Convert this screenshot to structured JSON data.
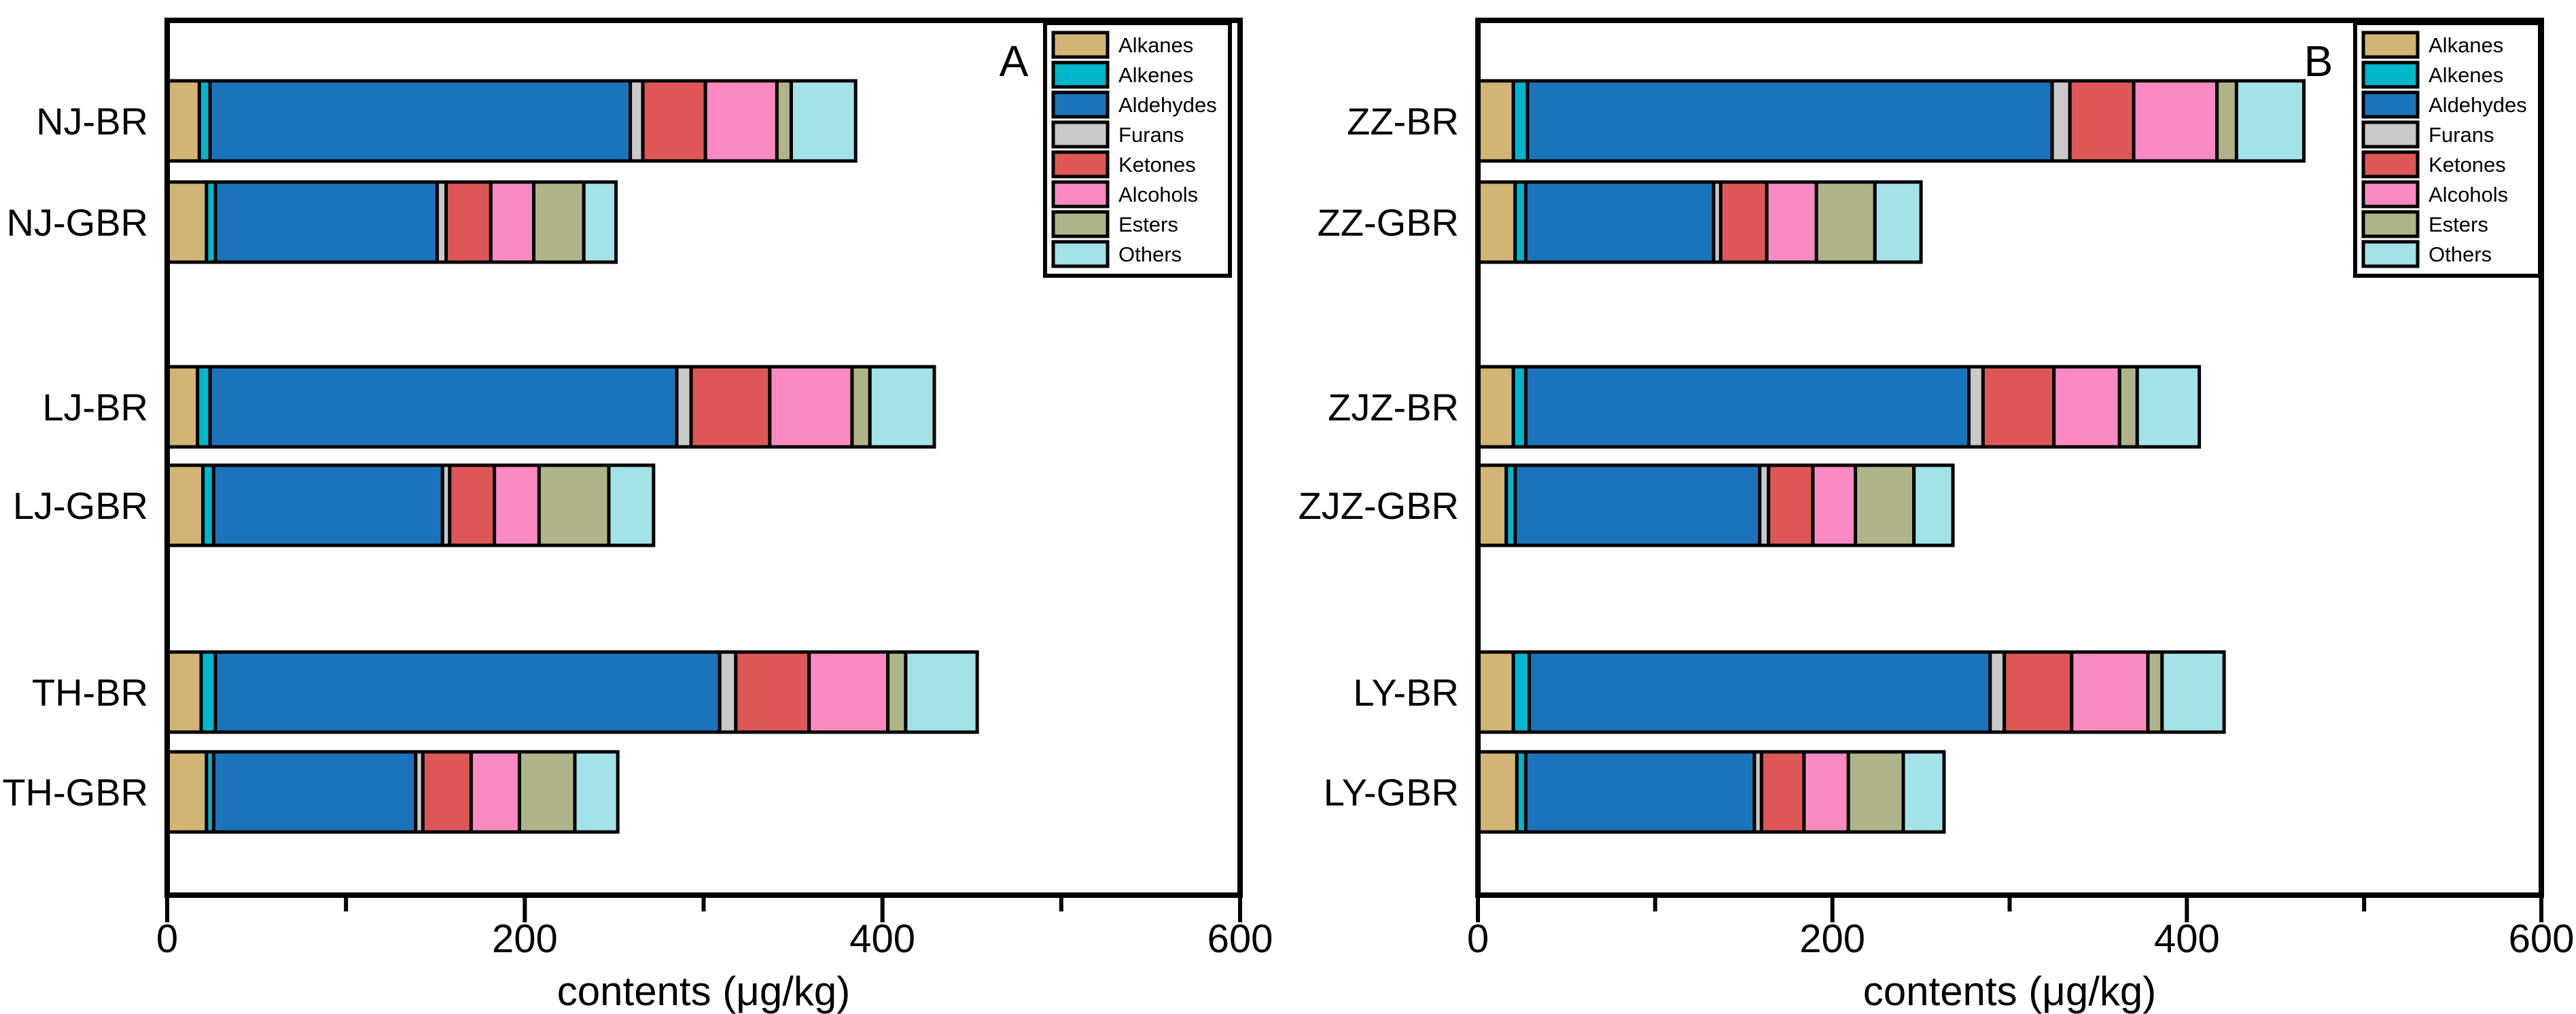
{
  "figure": {
    "background": "#FFFFFF",
    "axis_color": "#000000",
    "panel_letters": [
      "A",
      "B"
    ]
  },
  "chart_data": [
    {
      "type": "bar",
      "orientation": "horizontal",
      "stacked": true,
      "panel_label": "A",
      "xlabel": "contents (μg/kg)",
      "xlim": [
        0,
        600
      ],
      "xticks": [
        0,
        200,
        400,
        600
      ],
      "minor_xticks": [
        100,
        300,
        500
      ],
      "legend_position": "top-right",
      "categories": [
        "NJ-BR",
        "NJ-GBR",
        "LJ-BR",
        "LJ-GBR",
        "TH-BR",
        "TH-GBR"
      ],
      "series": [
        {
          "name": "Alkanes",
          "color": "#D2B475",
          "values": [
            18,
            22,
            17,
            20,
            19,
            22
          ]
        },
        {
          "name": "Alkenes",
          "color": "#00B6CA",
          "values": [
            6,
            5,
            7,
            6,
            8,
            4
          ]
        },
        {
          "name": "Aldehydes",
          "color": "#1B74BB",
          "values": [
            235,
            124,
            261,
            128,
            282,
            113
          ]
        },
        {
          "name": "Furans",
          "color": "#C9C9C9",
          "values": [
            7,
            5,
            8,
            4,
            9,
            4
          ]
        },
        {
          "name": "Ketones",
          "color": "#DE5757",
          "values": [
            35,
            25,
            44,
            25,
            41,
            27
          ]
        },
        {
          "name": "Alcohols",
          "color": "#FB8AC3",
          "values": [
            40,
            24,
            46,
            25,
            44,
            27
          ]
        },
        {
          "name": "Esters",
          "color": "#B1B488",
          "values": [
            8,
            28,
            10,
            39,
            10,
            31
          ]
        },
        {
          "name": "Others",
          "color": "#A3E3E8",
          "values": [
            36,
            18,
            36,
            25,
            40,
            24
          ]
        }
      ],
      "bar_totals": [
        385,
        251,
        429,
        272,
        453,
        252
      ]
    },
    {
      "type": "bar",
      "orientation": "horizontal",
      "stacked": true,
      "panel_label": "B",
      "xlabel": "contents (μg/kg)",
      "xlim": [
        0,
        600
      ],
      "xticks": [
        0,
        200,
        400,
        600
      ],
      "minor_xticks": [
        100,
        300,
        500
      ],
      "legend_position": "top-right",
      "categories": [
        "ZZ-BR",
        "ZZ-GBR",
        "ZJZ-BR",
        "ZJZ-GBR",
        "LY-BR",
        "LY-GBR"
      ],
      "series": [
        {
          "name": "Alkanes",
          "color": "#D2B475",
          "values": [
            20,
            21,
            20,
            16,
            20,
            22
          ]
        },
        {
          "name": "Alkenes",
          "color": "#00B6CA",
          "values": [
            8,
            6,
            7,
            5,
            9,
            5
          ]
        },
        {
          "name": "Aldehydes",
          "color": "#1B74BB",
          "values": [
            296,
            106,
            250,
            138,
            260,
            129
          ]
        },
        {
          "name": "Furans",
          "color": "#C9C9C9",
          "values": [
            10,
            4,
            8,
            5,
            8,
            4
          ]
        },
        {
          "name": "Ketones",
          "color": "#DE5757",
          "values": [
            36,
            26,
            40,
            25,
            38,
            24
          ]
        },
        {
          "name": "Alcohols",
          "color": "#FB8AC3",
          "values": [
            47,
            28,
            37,
            24,
            43,
            25
          ]
        },
        {
          "name": "Esters",
          "color": "#B1B488",
          "values": [
            11,
            33,
            10,
            33,
            8,
            31
          ]
        },
        {
          "name": "Others",
          "color": "#A3E3E8",
          "values": [
            38,
            26,
            35,
            22,
            35,
            23
          ]
        }
      ],
      "bar_totals": [
        466,
        250,
        407,
        268,
        421,
        263
      ]
    }
  ]
}
